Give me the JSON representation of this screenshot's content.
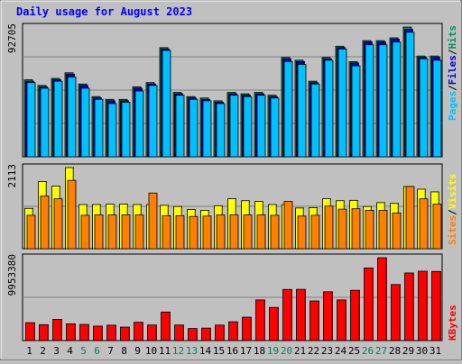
{
  "chart_data": [
    {
      "type": "bar",
      "title": "Daily usage for August 2023",
      "categories": [
        "1",
        "2",
        "3",
        "4",
        "5",
        "6",
        "7",
        "8",
        "9",
        "10",
        "11",
        "12",
        "13",
        "14",
        "15",
        "16",
        "17",
        "18",
        "19",
        "20",
        "21",
        "22",
        "23",
        "24",
        "25",
        "26",
        "27",
        "28",
        "29",
        "30",
        "31"
      ],
      "weekend_days": [
        "5",
        "6",
        "12",
        "13",
        "19",
        "20",
        "26",
        "27"
      ],
      "y_tick_label": "92705",
      "ylim": [
        0,
        92705
      ],
      "series": [
        {
          "name": "Hits",
          "color": "#009060",
          "values": [
            55000,
            51000,
            56000,
            60000,
            52000,
            43000,
            41000,
            41000,
            50000,
            53000,
            78000,
            46000,
            43000,
            42000,
            40000,
            46000,
            45000,
            46000,
            44000,
            71000,
            69000,
            54000,
            71000,
            79000,
            68000,
            83000,
            83000,
            85000,
            92705,
            72000,
            72000
          ]
        },
        {
          "name": "Files",
          "color": "#0000d0",
          "values": [
            54000,
            50000,
            55000,
            59000,
            51000,
            42000,
            40000,
            40000,
            49000,
            52000,
            77000,
            45000,
            42000,
            41000,
            39000,
            45000,
            44000,
            45000,
            43000,
            70000,
            68000,
            53000,
            70000,
            78000,
            67000,
            82000,
            82000,
            84000,
            91000,
            71000,
            71000
          ]
        },
        {
          "name": "Pages",
          "color": "#00c0ff",
          "values": [
            53000,
            49000,
            54000,
            57000,
            49000,
            41000,
            38000,
            39000,
            47000,
            51000,
            76000,
            44000,
            41000,
            40000,
            38000,
            44000,
            43000,
            44000,
            42000,
            68000,
            66000,
            52000,
            69000,
            77000,
            65000,
            80000,
            80000,
            82000,
            89000,
            70000,
            69000
          ]
        }
      ],
      "legend": [
        "Pages",
        "Files",
        "Hits"
      ],
      "legend_placement": "right",
      "grid": true
    },
    {
      "type": "bar",
      "categories": [
        "1",
        "2",
        "3",
        "4",
        "5",
        "6",
        "7",
        "8",
        "9",
        "10",
        "11",
        "12",
        "13",
        "14",
        "15",
        "16",
        "17",
        "18",
        "19",
        "20",
        "21",
        "22",
        "23",
        "24",
        "25",
        "26",
        "27",
        "28",
        "29",
        "30",
        "31"
      ],
      "y_tick_label": "2113",
      "ylim": [
        0,
        2113
      ],
      "series": [
        {
          "name": "Visits",
          "color": "#ffff00",
          "values": [
            1050,
            1750,
            1630,
            2113,
            1150,
            1150,
            1160,
            1160,
            1150,
            1150,
            1130,
            1100,
            1020,
            1000,
            1120,
            1300,
            1250,
            1230,
            1150,
            1150,
            1060,
            1070,
            1300,
            1250,
            1260,
            1100,
            1200,
            1180,
            1620,
            1550,
            1480
          ]
        },
        {
          "name": "Sites",
          "color": "#ff8000",
          "values": [
            870,
            1370,
            1300,
            1780,
            870,
            880,
            880,
            880,
            880,
            1450,
            860,
            860,
            840,
            850,
            880,
            880,
            880,
            880,
            870,
            1230,
            850,
            870,
            1110,
            1030,
            1040,
            1000,
            1000,
            930,
            1620,
            1300,
            1160
          ]
        }
      ],
      "legend": [
        "Sites",
        "Visits"
      ],
      "legend_placement": "right",
      "grid": true
    },
    {
      "type": "bar",
      "categories": [
        "1",
        "2",
        "3",
        "4",
        "5",
        "6",
        "7",
        "8",
        "9",
        "10",
        "11",
        "12",
        "13",
        "14",
        "15",
        "16",
        "17",
        "18",
        "19",
        "20",
        "21",
        "22",
        "23",
        "24",
        "25",
        "26",
        "27",
        "28",
        "29",
        "30",
        "31"
      ],
      "y_tick_label": "9953380",
      "ylim": [
        0,
        9953380
      ],
      "series": [
        {
          "name": "KBytes",
          "color": "#ff0000",
          "values": [
            2150000,
            1910000,
            2550000,
            2010000,
            1940000,
            1740000,
            1850000,
            1620000,
            2200000,
            1870000,
            3430000,
            1870000,
            1450000,
            1500000,
            1860000,
            2260000,
            2810000,
            4880000,
            3980000,
            6140000,
            6150000,
            4760000,
            5860000,
            4880000,
            6040000,
            8720000,
            9953380,
            6730000,
            8120000,
            8330000,
            8300000
          ]
        }
      ],
      "legend": [
        "KBytes"
      ],
      "legend_placement": "right",
      "grid": true
    }
  ]
}
